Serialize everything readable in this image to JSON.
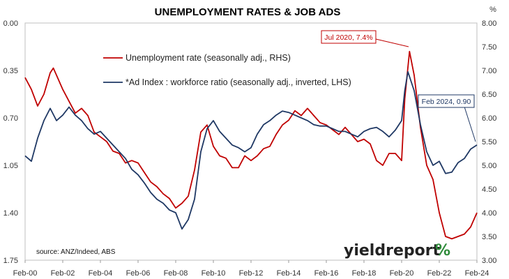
{
  "chart_data": {
    "type": "line",
    "title": "UNEMPLOYMENT RATES & JOB ADS",
    "right_unit": "%",
    "x_tick_labels": [
      "Feb-00",
      "Feb-02",
      "Feb-04",
      "Feb-06",
      "Feb-08",
      "Feb-10",
      "Feb-12",
      "Feb-14",
      "Feb-16",
      "Feb-18",
      "Feb-20",
      "Feb-22",
      "Feb-24"
    ],
    "left_axis": {
      "ticks": [
        "0.00",
        "0.35",
        "0.70",
        "1.05",
        "1.40",
        "1.75"
      ],
      "range": [
        0.0,
        1.75
      ],
      "inverted": true
    },
    "right_axis": {
      "ticks": [
        "8.00",
        "7.50",
        "7.00",
        "6.50",
        "6.00",
        "5.50",
        "5.00",
        "4.50",
        "4.00",
        "3.50",
        "3.00"
      ],
      "range": [
        3.0,
        8.0
      ]
    },
    "grid": false,
    "legend_position": "upper-left",
    "series": [
      {
        "name": "Unemployment rate (seasonally adj., RHS)",
        "axis": "right",
        "color": "#c00000",
        "points": [
          [
            "2000-02",
            6.85
          ],
          [
            "2000-06",
            6.6
          ],
          [
            "2000-10",
            6.25
          ],
          [
            "2001-02",
            6.5
          ],
          [
            "2001-06",
            6.95
          ],
          [
            "2001-08",
            7.05
          ],
          [
            "2001-10",
            6.9
          ],
          [
            "2002-02",
            6.6
          ],
          [
            "2002-06",
            6.35
          ],
          [
            "2002-10",
            6.1
          ],
          [
            "2003-02",
            6.2
          ],
          [
            "2003-06",
            6.05
          ],
          [
            "2003-10",
            5.7
          ],
          [
            "2004-02",
            5.6
          ],
          [
            "2004-06",
            5.5
          ],
          [
            "2004-10",
            5.3
          ],
          [
            "2005-02",
            5.25
          ],
          [
            "2005-06",
            5.05
          ],
          [
            "2005-10",
            5.1
          ],
          [
            "2006-02",
            5.05
          ],
          [
            "2006-06",
            4.85
          ],
          [
            "2006-10",
            4.65
          ],
          [
            "2007-02",
            4.55
          ],
          [
            "2007-06",
            4.4
          ],
          [
            "2007-10",
            4.3
          ],
          [
            "2008-02",
            4.1
          ],
          [
            "2008-06",
            4.2
          ],
          [
            "2008-10",
            4.35
          ],
          [
            "2009-02",
            4.9
          ],
          [
            "2009-06",
            5.7
          ],
          [
            "2009-10",
            5.85
          ],
          [
            "2010-02",
            5.4
          ],
          [
            "2010-06",
            5.2
          ],
          [
            "2010-10",
            5.15
          ],
          [
            "2011-02",
            4.95
          ],
          [
            "2011-06",
            4.95
          ],
          [
            "2011-10",
            5.2
          ],
          [
            "2012-02",
            5.1
          ],
          [
            "2012-06",
            5.2
          ],
          [
            "2012-10",
            5.35
          ],
          [
            "2013-02",
            5.4
          ],
          [
            "2013-06",
            5.65
          ],
          [
            "2013-10",
            5.85
          ],
          [
            "2014-02",
            5.95
          ],
          [
            "2014-06",
            6.15
          ],
          [
            "2014-10",
            6.05
          ],
          [
            "2015-02",
            6.2
          ],
          [
            "2015-06",
            6.05
          ],
          [
            "2015-10",
            5.9
          ],
          [
            "2016-02",
            5.85
          ],
          [
            "2016-06",
            5.75
          ],
          [
            "2016-10",
            5.65
          ],
          [
            "2017-02",
            5.8
          ],
          [
            "2017-06",
            5.65
          ],
          [
            "2017-10",
            5.5
          ],
          [
            "2018-02",
            5.55
          ],
          [
            "2018-06",
            5.45
          ],
          [
            "2018-10",
            5.1
          ],
          [
            "2019-02",
            5.0
          ],
          [
            "2019-06",
            5.25
          ],
          [
            "2019-10",
            5.25
          ],
          [
            "2020-02",
            5.1
          ],
          [
            "2020-04",
            6.4
          ],
          [
            "2020-07",
            7.4
          ],
          [
            "2020-10",
            6.9
          ],
          [
            "2021-02",
            5.8
          ],
          [
            "2021-06",
            5.0
          ],
          [
            "2021-10",
            4.7
          ],
          [
            "2022-02",
            4.0
          ],
          [
            "2022-06",
            3.5
          ],
          [
            "2022-10",
            3.45
          ],
          [
            "2023-02",
            3.5
          ],
          [
            "2023-06",
            3.55
          ],
          [
            "2023-10",
            3.7
          ],
          [
            "2024-02",
            4.0
          ]
        ]
      },
      {
        "name": "*Ad Index : workforce ratio (seasonally adj., inverted, LHS)",
        "axis": "left",
        "color": "#1f3864",
        "points": [
          [
            "2000-02",
            0.98
          ],
          [
            "2000-06",
            1.02
          ],
          [
            "2000-10",
            0.85
          ],
          [
            "2001-02",
            0.72
          ],
          [
            "2001-06",
            0.63
          ],
          [
            "2001-10",
            0.72
          ],
          [
            "2002-02",
            0.68
          ],
          [
            "2002-06",
            0.62
          ],
          [
            "2002-10",
            0.68
          ],
          [
            "2003-02",
            0.72
          ],
          [
            "2003-06",
            0.78
          ],
          [
            "2003-10",
            0.82
          ],
          [
            "2004-02",
            0.8
          ],
          [
            "2004-06",
            0.85
          ],
          [
            "2004-10",
            0.9
          ],
          [
            "2005-02",
            0.95
          ],
          [
            "2005-06",
            1.0
          ],
          [
            "2005-10",
            1.08
          ],
          [
            "2006-02",
            1.12
          ],
          [
            "2006-06",
            1.18
          ],
          [
            "2006-10",
            1.25
          ],
          [
            "2007-02",
            1.3
          ],
          [
            "2007-06",
            1.33
          ],
          [
            "2007-10",
            1.38
          ],
          [
            "2008-02",
            1.4
          ],
          [
            "2008-06",
            1.52
          ],
          [
            "2008-10",
            1.45
          ],
          [
            "2009-02",
            1.3
          ],
          [
            "2009-06",
            0.95
          ],
          [
            "2009-10",
            0.78
          ],
          [
            "2010-02",
            0.72
          ],
          [
            "2010-06",
            0.8
          ],
          [
            "2010-10",
            0.85
          ],
          [
            "2011-02",
            0.9
          ],
          [
            "2011-06",
            0.92
          ],
          [
            "2011-10",
            0.95
          ],
          [
            "2012-02",
            0.92
          ],
          [
            "2012-06",
            0.82
          ],
          [
            "2012-10",
            0.75
          ],
          [
            "2013-02",
            0.72
          ],
          [
            "2013-06",
            0.68
          ],
          [
            "2013-10",
            0.65
          ],
          [
            "2014-02",
            0.66
          ],
          [
            "2014-06",
            0.68
          ],
          [
            "2014-10",
            0.7
          ],
          [
            "2015-02",
            0.72
          ],
          [
            "2015-06",
            0.75
          ],
          [
            "2015-10",
            0.76
          ],
          [
            "2016-02",
            0.76
          ],
          [
            "2016-06",
            0.78
          ],
          [
            "2016-10",
            0.8
          ],
          [
            "2017-02",
            0.8
          ],
          [
            "2017-06",
            0.82
          ],
          [
            "2017-10",
            0.84
          ],
          [
            "2018-02",
            0.8
          ],
          [
            "2018-06",
            0.78
          ],
          [
            "2018-10",
            0.77
          ],
          [
            "2019-02",
            0.8
          ],
          [
            "2019-06",
            0.84
          ],
          [
            "2019-10",
            0.79
          ],
          [
            "2020-02",
            0.72
          ],
          [
            "2020-04",
            0.5
          ],
          [
            "2020-06",
            0.36
          ],
          [
            "2020-10",
            0.5
          ],
          [
            "2021-02",
            0.75
          ],
          [
            "2021-06",
            0.95
          ],
          [
            "2021-10",
            1.05
          ],
          [
            "2022-02",
            1.02
          ],
          [
            "2022-06",
            1.11
          ],
          [
            "2022-10",
            1.1
          ],
          [
            "2023-02",
            1.03
          ],
          [
            "2023-06",
            1.0
          ],
          [
            "2023-10",
            0.93
          ],
          [
            "2024-02",
            0.9
          ]
        ]
      }
    ],
    "annotations": [
      {
        "text": "Jul 2020, 7.4%",
        "series": 0,
        "at": "2020-07",
        "value": 7.4
      },
      {
        "text": "Feb 2024, 0.90",
        "series": 1,
        "at": "2024-02",
        "value": 0.9
      }
    ],
    "source": "source: ANZ/Indeed, ABS"
  },
  "logo": {
    "text": "yieldreport",
    "symbol": "%"
  },
  "colors": {
    "unemployment": "#c00000",
    "ad_index": "#1f3864",
    "logo_text": "#222222",
    "logo_green": "#2e8b3a",
    "logo_red": "#c00000"
  }
}
